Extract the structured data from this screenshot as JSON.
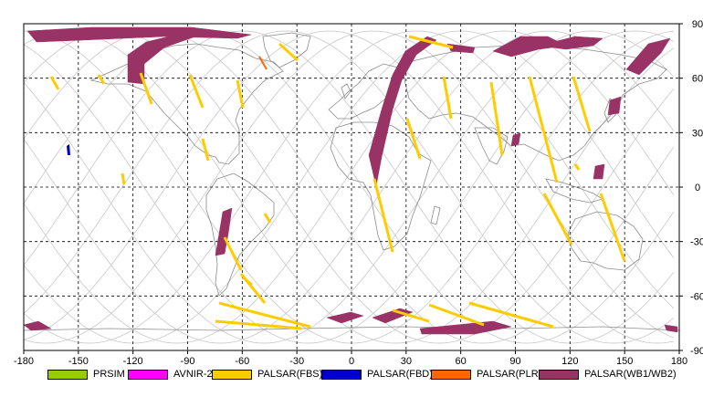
{
  "map": {
    "x_ticks": [
      "-180",
      "-150",
      "-120",
      "-90",
      "-60",
      "-30",
      "0",
      "30",
      "60",
      "90",
      "120",
      "150",
      "180"
    ],
    "y_ticks": [
      "90",
      "60",
      "30",
      "0",
      "-30",
      "-60",
      "-90"
    ],
    "grid_color": "#000000",
    "orbit_color": "#c8c8c8",
    "coast_color": "#8c8c8c"
  },
  "legend": {
    "items": [
      {
        "label": "PRSIM",
        "color": "#99cc00"
      },
      {
        "label": "AVNIR-2",
        "color": "#ff00ff"
      },
      {
        "label": "PALSAR(FBS)",
        "color": "#ffcc00"
      },
      {
        "label": "PALSAR(FBD)",
        "color": "#0000cc"
      },
      {
        "label": "PALSAR(PLR)",
        "color": "#ff6600"
      },
      {
        "label": "PALSAR(WB1/WB2)",
        "color": "#993366"
      }
    ]
  }
}
